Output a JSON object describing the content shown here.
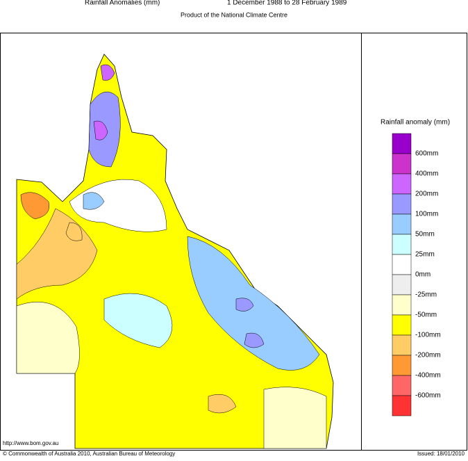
{
  "header": {
    "title": "Rainfall Anomalies (mm)",
    "period": "1 December 1988 to 28 February 1989",
    "subtitle": "Product of the National Climate Centre"
  },
  "legend": {
    "title": "Rainfall anomaly (mm)",
    "colors": [
      "#9900cc",
      "#cc33cc",
      "#cc66ff",
      "#9999ff",
      "#99ccff",
      "#ccffff",
      "#ffffff",
      "#eeeeee",
      "#ffffcc",
      "#ffff00",
      "#ffcc66",
      "#ff9933",
      "#ff6666",
      "#ff3333"
    ],
    "labels": [
      "600mm",
      "400mm",
      "200mm",
      "100mm",
      "50mm",
      "25mm",
      "0mm",
      "-25mm",
      "-50mm",
      "-100mm",
      "-200mm",
      "-400mm",
      "-600mm"
    ]
  },
  "footer": {
    "url": "http://www.bom.gov.au",
    "copyright": "© Commonwealth of Australia 2010, Australian Bureau of Meteorology",
    "issued": "Issued: 18/01/2010"
  }
}
